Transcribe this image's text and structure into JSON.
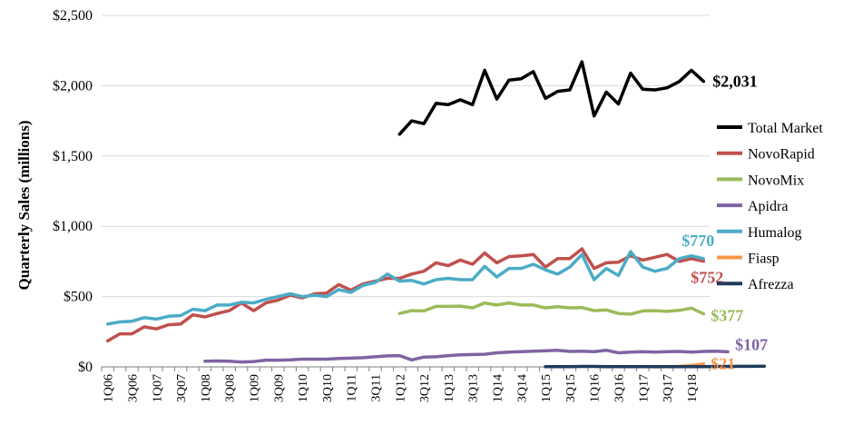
{
  "chart_data": {
    "type": "line",
    "title": "",
    "xlabel": "",
    "ylabel": "Quarterly Sales (millions)",
    "ylim": [
      0,
      2500
    ],
    "yticks": [
      0,
      500,
      1000,
      1500,
      2000,
      2500
    ],
    "ytick_labels": [
      "$0",
      "$500",
      "$1,000",
      "$1,500",
      "$2,000",
      "$2,500"
    ],
    "xtick_labels": [
      "1Q06",
      "3Q06",
      "1Q07",
      "3Q07",
      "1Q08",
      "3Q08",
      "1Q09",
      "3Q09",
      "1Q10",
      "3Q10",
      "1Q11",
      "3Q11",
      "1Q12",
      "3Q12",
      "1Q13",
      "3Q13",
      "1Q14",
      "3Q14",
      "1Q15",
      "3Q15",
      "1Q16",
      "3Q16",
      "1Q17",
      "3Q17",
      "1Q18"
    ],
    "grid": "horizontal",
    "legend_position": "right",
    "series": [
      {
        "name": "Total Market",
        "color": "#000000",
        "start": "1Q12",
        "values": [
          1655,
          1750,
          1730,
          1875,
          1865,
          1900,
          1865,
          2110,
          1905,
          2040,
          2050,
          2100,
          1910,
          1960,
          1970,
          2170,
          1785,
          1955,
          1870,
          2090,
          1975,
          1970,
          1985,
          2030,
          2110,
          2031
        ],
        "end_label": "$2,031"
      },
      {
        "name": "NovoRapid",
        "color": "#c0504d",
        "start": "1Q06",
        "values": [
          185,
          235,
          235,
          285,
          270,
          300,
          305,
          370,
          355,
          380,
          400,
          455,
          400,
          455,
          475,
          510,
          490,
          520,
          525,
          585,
          545,
          590,
          610,
          630,
          630,
          660,
          680,
          740,
          720,
          760,
          730,
          810,
          740,
          785,
          790,
          800,
          710,
          770,
          770,
          840,
          700,
          740,
          745,
          790,
          760,
          780,
          800,
          750,
          770,
          752
        ],
        "end_label": "$752"
      },
      {
        "name": "NovoMix",
        "color": "#9bbb59",
        "start": "1Q12",
        "values": [
          380,
          400,
          398,
          430,
          430,
          432,
          420,
          455,
          440,
          455,
          440,
          440,
          420,
          428,
          420,
          422,
          400,
          405,
          380,
          375,
          398,
          400,
          395,
          402,
          418,
          377
        ],
        "end_label": "$377"
      },
      {
        "name": "Apidra",
        "color": "#8064a2",
        "start": "1Q08",
        "values": [
          40,
          42,
          40,
          35,
          38,
          48,
          48,
          50,
          55,
          55,
          55,
          60,
          62,
          65,
          72,
          78,
          80,
          50,
          70,
          72,
          80,
          85,
          88,
          90,
          100,
          105,
          108,
          112,
          115,
          118,
          110,
          112,
          108,
          118,
          100,
          105,
          108,
          105,
          108,
          110,
          105,
          110,
          112,
          107
        ],
        "end_label": "$107"
      },
      {
        "name": "Humalog",
        "color": "#4bacc6",
        "start": "1Q06",
        "values": [
          305,
          320,
          325,
          350,
          340,
          360,
          365,
          410,
          400,
          440,
          440,
          460,
          455,
          480,
          500,
          520,
          500,
          510,
          500,
          550,
          530,
          580,
          600,
          660,
          610,
          615,
          590,
          620,
          630,
          620,
          620,
          715,
          640,
          700,
          700,
          730,
          690,
          660,
          710,
          800,
          620,
          700,
          650,
          820,
          710,
          680,
          700,
          770,
          790,
          770
        ],
        "end_label": "$770"
      },
      {
        "name": "Fiasp",
        "color": "#f79646",
        "start": "2Q17",
        "values": [
          0,
          2,
          4,
          10,
          21
        ],
        "end_label": "$21"
      },
      {
        "name": "Afrezza",
        "color": "#1f3b5c",
        "start": "1Q15",
        "values": [
          1,
          2,
          2,
          3,
          3,
          2,
          2,
          2,
          2,
          2,
          2,
          2,
          2,
          2,
          3,
          3,
          4,
          4,
          5
        ],
        "end_label": ""
      }
    ]
  }
}
